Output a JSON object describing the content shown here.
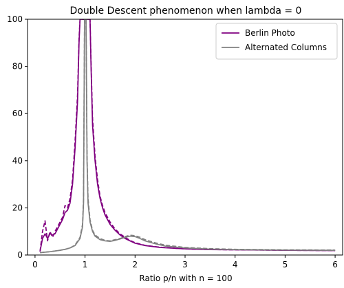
{
  "chart_data": {
    "type": "line",
    "title": "Double Descent phenomenon when lambda = 0",
    "xlabel": "Ratio p/n with n = 100",
    "ylabel": "",
    "xlim": [
      -0.15,
      6.15
    ],
    "ylim": [
      0,
      100
    ],
    "xticks": [
      0,
      1,
      2,
      3,
      4,
      5,
      6
    ],
    "yticks": [
      0,
      20,
      40,
      60,
      80,
      100
    ],
    "grid": false,
    "legend_position": "top-right",
    "series": [
      {
        "name": "Berlin Photo",
        "color": "#800080",
        "style": "solid",
        "in_legend": true,
        "points": [
          [
            0.1,
            1.5
          ],
          [
            0.15,
            7
          ],
          [
            0.2,
            9
          ],
          [
            0.25,
            7
          ],
          [
            0.3,
            9
          ],
          [
            0.35,
            8.5
          ],
          [
            0.4,
            9
          ],
          [
            0.45,
            11
          ],
          [
            0.5,
            13
          ],
          [
            0.55,
            15
          ],
          [
            0.6,
            18
          ],
          [
            0.65,
            19
          ],
          [
            0.7,
            22
          ],
          [
            0.75,
            30
          ],
          [
            0.8,
            45
          ],
          [
            0.85,
            65
          ],
          [
            0.88,
            90
          ],
          [
            0.9,
            100
          ],
          [
            1.1,
            100
          ],
          [
            1.12,
            80
          ],
          [
            1.15,
            55
          ],
          [
            1.2,
            40
          ],
          [
            1.25,
            30
          ],
          [
            1.3,
            24
          ],
          [
            1.35,
            20
          ],
          [
            1.4,
            17
          ],
          [
            1.5,
            13
          ],
          [
            1.6,
            10.5
          ],
          [
            1.7,
            8.5
          ],
          [
            1.8,
            7
          ],
          [
            1.9,
            6
          ],
          [
            2.0,
            5
          ],
          [
            2.2,
            4
          ],
          [
            2.5,
            3.2
          ],
          [
            3.0,
            2.6
          ],
          [
            3.5,
            2.3
          ],
          [
            4.0,
            2.2
          ],
          [
            5.0,
            2.0
          ],
          [
            6.0,
            1.9
          ]
        ]
      },
      {
        "name": "",
        "color": "#800080",
        "style": "dashed",
        "in_legend": false,
        "points": [
          [
            0.1,
            1.5
          ],
          [
            0.15,
            10
          ],
          [
            0.2,
            14.5
          ],
          [
            0.25,
            6
          ],
          [
            0.3,
            10
          ],
          [
            0.35,
            7.5
          ],
          [
            0.4,
            10
          ],
          [
            0.45,
            12
          ],
          [
            0.5,
            14
          ],
          [
            0.55,
            16
          ],
          [
            0.6,
            21
          ],
          [
            0.65,
            20
          ],
          [
            0.7,
            24
          ],
          [
            0.75,
            32
          ],
          [
            0.8,
            48
          ],
          [
            0.85,
            68
          ],
          [
            0.88,
            92
          ],
          [
            0.9,
            100
          ],
          [
            1.1,
            100
          ],
          [
            1.12,
            82
          ],
          [
            1.15,
            58
          ],
          [
            1.2,
            42
          ],
          [
            1.25,
            32
          ],
          [
            1.3,
            25
          ],
          [
            1.35,
            21
          ],
          [
            1.4,
            18
          ],
          [
            1.5,
            14
          ],
          [
            1.6,
            11
          ],
          [
            1.7,
            9
          ],
          [
            1.8,
            7.5
          ],
          [
            1.9,
            6.2
          ],
          [
            2.0,
            5.2
          ],
          [
            2.2,
            4.1
          ],
          [
            2.5,
            3.3
          ],
          [
            3.0,
            2.6
          ],
          [
            3.5,
            2.3
          ],
          [
            4.0,
            2.2
          ],
          [
            5.0,
            2.0
          ],
          [
            6.0,
            1.9
          ]
        ]
      },
      {
        "name": "Alternated Columns",
        "color": "#808080",
        "style": "solid",
        "in_legend": true,
        "points": [
          [
            0.1,
            1.0
          ],
          [
            0.2,
            1.2
          ],
          [
            0.3,
            1.4
          ],
          [
            0.4,
            1.7
          ],
          [
            0.5,
            2.0
          ],
          [
            0.6,
            2.4
          ],
          [
            0.7,
            3.0
          ],
          [
            0.8,
            4.0
          ],
          [
            0.9,
            7.0
          ],
          [
            0.95,
            12
          ],
          [
            0.97,
            22
          ],
          [
            0.99,
            100
          ],
          [
            1.02,
            100
          ],
          [
            1.04,
            40
          ],
          [
            1.06,
            22
          ],
          [
            1.1,
            14
          ],
          [
            1.15,
            10
          ],
          [
            1.2,
            8
          ],
          [
            1.3,
            6.5
          ],
          [
            1.4,
            6
          ],
          [
            1.5,
            5.8
          ],
          [
            1.6,
            6.2
          ],
          [
            1.7,
            6.8
          ],
          [
            1.8,
            7.5
          ],
          [
            1.9,
            8
          ],
          [
            2.0,
            7.8
          ],
          [
            2.1,
            7
          ],
          [
            2.2,
            6
          ],
          [
            2.4,
            4.8
          ],
          [
            2.6,
            3.8
          ],
          [
            3.0,
            3.0
          ],
          [
            3.5,
            2.5
          ],
          [
            4.0,
            2.3
          ],
          [
            5.0,
            2.1
          ],
          [
            6.0,
            2.0
          ]
        ]
      },
      {
        "name": "",
        "color": "#808080",
        "style": "dashed",
        "in_legend": false,
        "points": [
          [
            0.1,
            1.0
          ],
          [
            0.2,
            1.2
          ],
          [
            0.3,
            1.4
          ],
          [
            0.4,
            1.7
          ],
          [
            0.5,
            2.0
          ],
          [
            0.6,
            2.4
          ],
          [
            0.7,
            3.0
          ],
          [
            0.8,
            4.2
          ],
          [
            0.9,
            7.5
          ],
          [
            0.95,
            13
          ],
          [
            0.97,
            24
          ],
          [
            0.99,
            100
          ],
          [
            1.02,
            100
          ],
          [
            1.04,
            42
          ],
          [
            1.06,
            24
          ],
          [
            1.1,
            15
          ],
          [
            1.15,
            10.5
          ],
          [
            1.2,
            8.5
          ],
          [
            1.3,
            7
          ],
          [
            1.4,
            6.2
          ],
          [
            1.5,
            6
          ],
          [
            1.6,
            6.5
          ],
          [
            1.7,
            7
          ],
          [
            1.8,
            7.8
          ],
          [
            1.9,
            8.4
          ],
          [
            2.0,
            8.2
          ],
          [
            2.1,
            7.5
          ],
          [
            2.2,
            6.5
          ],
          [
            2.4,
            5.2
          ],
          [
            2.6,
            4.2
          ],
          [
            3.0,
            3.2
          ],
          [
            3.5,
            2.7
          ],
          [
            4.0,
            2.4
          ],
          [
            5.0,
            2.2
          ],
          [
            6.0,
            2.1
          ]
        ]
      }
    ]
  }
}
